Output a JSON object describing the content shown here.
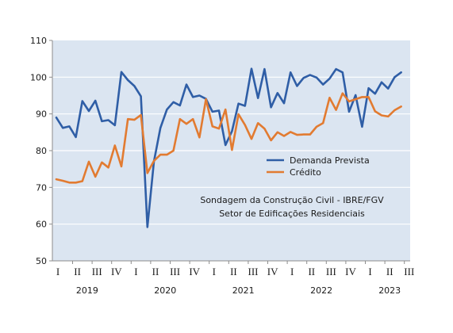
{
  "chart_data": {
    "type": "line",
    "x_tick_labels": [
      "I",
      "II",
      "III",
      "IV",
      "I",
      "II",
      "III",
      "IV",
      "I",
      "II",
      "III",
      "IV",
      "I",
      "II",
      "III",
      "IV",
      "I",
      "II",
      "III"
    ],
    "year_labels": [
      "2019",
      "2020",
      "2021",
      "2022",
      "2023"
    ],
    "y_ticks": [
      50,
      60,
      70,
      80,
      90,
      100,
      110
    ],
    "ylim": [
      50,
      110
    ],
    "grid": true,
    "legend": "center-right",
    "series": [
      {
        "name": "Demanda Prevista",
        "color": "#2f5ea6",
        "values": [
          89.0,
          86.2,
          86.6,
          83.7,
          93.5,
          90.8,
          93.6,
          88.0,
          88.3,
          86.9,
          101.4,
          99.2,
          97.6,
          94.8,
          59.2,
          77.0,
          86.2,
          91.2,
          93.2,
          92.3,
          98.0,
          94.6,
          95.0,
          94.1,
          90.6,
          90.9,
          81.5,
          85.3,
          92.8,
          92.2,
          102.3,
          94.3,
          102.2,
          91.8,
          95.7,
          92.9,
          101.3,
          97.6,
          99.8,
          100.6,
          99.9,
          98.0,
          99.6,
          102.2,
          101.3,
          90.6,
          95.1,
          86.5,
          97.0,
          95.5,
          98.6,
          96.9,
          100.0,
          101.3
        ]
      },
      {
        "name": "Crédito",
        "color": "#e27b31",
        "values": [
          72.2,
          71.8,
          71.3,
          71.3,
          71.7,
          77.0,
          72.9,
          76.8,
          75.4,
          81.4,
          75.7,
          88.6,
          88.4,
          89.7,
          73.9,
          77.2,
          78.9,
          78.9,
          80.0,
          88.6,
          87.3,
          88.6,
          83.6,
          94.0,
          86.6,
          86.0,
          91.2,
          80.2,
          89.9,
          87.0,
          83.2,
          87.5,
          86.0,
          82.8,
          85.0,
          84.0,
          85.1,
          84.3,
          84.4,
          84.4,
          86.5,
          87.5,
          94.4,
          91.1,
          95.6,
          93.4,
          94.0,
          94.6,
          94.6,
          90.7,
          89.6,
          89.3,
          91.0,
          92.0
        ]
      }
    ],
    "annotations": [
      "Sondagem da Construção Civil - IBRE/FGV",
      "Setor de Edificações Residenciais"
    ],
    "colors": {
      "plot_background": "#dbe5f1",
      "grid": "#ffffff",
      "axis": "#8c8c8c"
    }
  }
}
